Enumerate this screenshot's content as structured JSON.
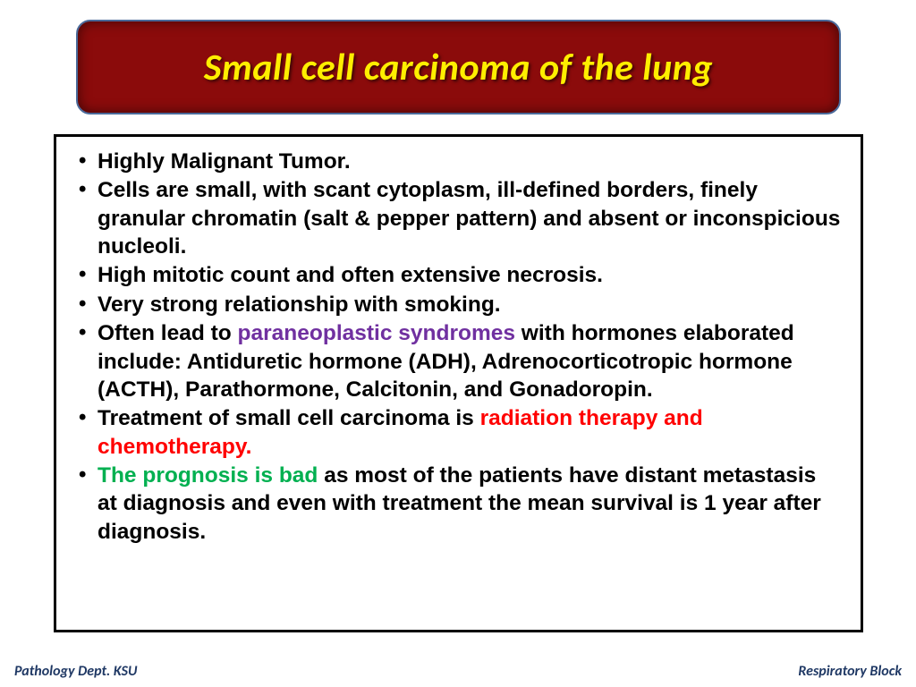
{
  "title": "Small cell carcinoma of the lung",
  "colors": {
    "banner_bg": "#8b0b0b",
    "banner_border": "#4a6a9a",
    "title_text": "#ffee00",
    "body_text": "#000000",
    "highlight_purple": "#7030a0",
    "highlight_red": "#ff0000",
    "highlight_green": "#00b050",
    "content_border": "#000000",
    "footer_text": "#1f3864",
    "background": "#ffffff"
  },
  "typography": {
    "title_font": "Calibri italic bold",
    "title_size_pt": 32,
    "body_font": "Arial bold",
    "body_size_pt": 18,
    "footer_font": "Calibri italic bold",
    "footer_size_pt": 12
  },
  "bullets": [
    {
      "runs": [
        {
          "t": "Highly Malignant Tumor."
        }
      ]
    },
    {
      "runs": [
        {
          "t": "Cells are small, with scant cytoplasm, ill-defined borders, finely granular chromatin (salt & pepper pattern) and absent or inconspicious nucleoli."
        }
      ]
    },
    {
      "runs": [
        {
          "t": "High mitotic count and often extensive necrosis."
        }
      ]
    },
    {
      "runs": [
        {
          "t": "Very strong relationship with smoking."
        }
      ]
    },
    {
      "runs": [
        {
          "t": "Often lead to "
        },
        {
          "t": "paraneoplastic syndromes",
          "c": "purple"
        },
        {
          "t": " with hormones elaborated include: Antiduretic hormone (ADH), Adrenocorticotropic hormone (ACTH), Parathormone, Calcitonin, and Gonadoropin."
        }
      ]
    },
    {
      "runs": [
        {
          "t": "Treatment of small cell carcinoma is "
        },
        {
          "t": "radiation therapy and chemotherapy.",
          "c": "red"
        }
      ]
    },
    {
      "runs": [
        {
          "t": "The prognosis is bad",
          "c": "green"
        },
        {
          "t": " as most of the patients have distant metastasis at diagnosis and even with treatment the mean survival is 1 year after diagnosis."
        }
      ]
    }
  ],
  "footer": {
    "left": "Pathology Dept. KSU",
    "right": "Respiratory Block"
  }
}
